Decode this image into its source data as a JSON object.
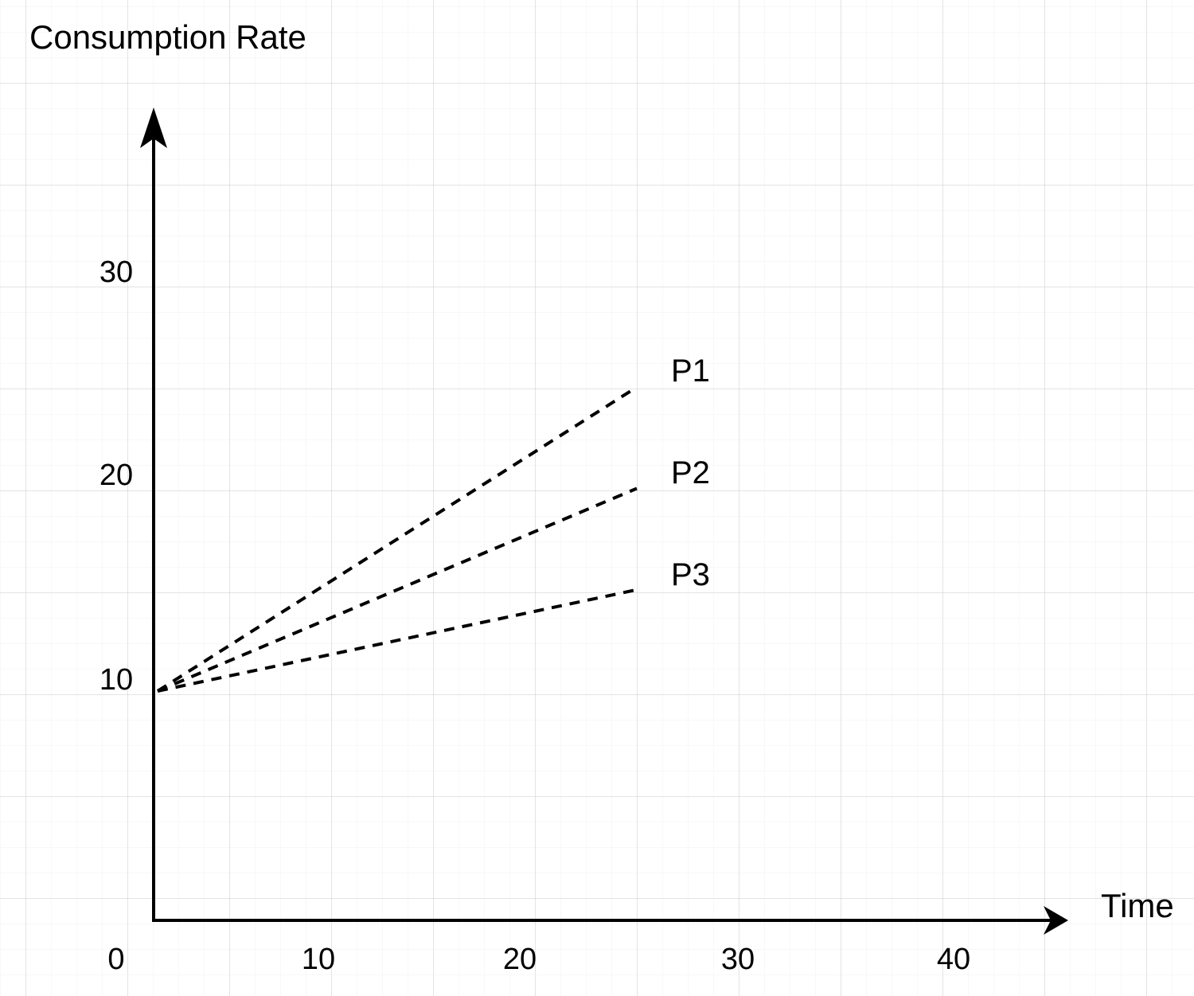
{
  "chart_data": {
    "type": "line",
    "title": "",
    "ylabel": "Consumption Rate",
    "xlabel": "Time",
    "x_ticks": [
      "0",
      "10",
      "20",
      "30",
      "40"
    ],
    "y_ticks": [
      "10",
      "20",
      "30"
    ],
    "xlim": [
      0,
      45
    ],
    "ylim": [
      0,
      38
    ],
    "grid": true,
    "legend_position": "end-of-line-labels",
    "line_style": "dashed",
    "colors": {
      "line": "#000000",
      "text": "#000000",
      "grid_minor": "#f0f0f0",
      "grid_major": "#c9c9c9",
      "background": "#ffffff"
    },
    "series": [
      {
        "name": "P1",
        "points": [
          [
            0,
            10
          ],
          [
            25,
            25
          ]
        ]
      },
      {
        "name": "P2",
        "points": [
          [
            0,
            10
          ],
          [
            25,
            20
          ]
        ]
      },
      {
        "name": "P3",
        "points": [
          [
            0,
            10
          ],
          [
            25,
            15
          ]
        ]
      }
    ]
  }
}
